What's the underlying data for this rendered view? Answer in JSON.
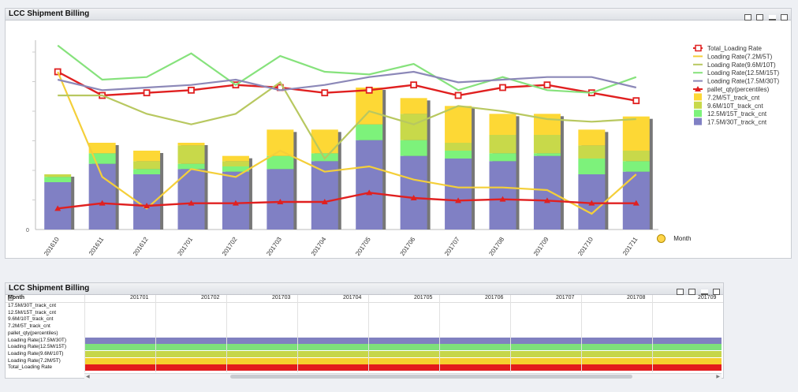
{
  "chart_panel": {
    "title": "LCC Shipment Billing",
    "month_label": "Month"
  },
  "table_panel": {
    "title": "LCC Shipment Billing",
    "corner_label": "Month",
    "columns": [
      "201701",
      "201702",
      "201703",
      "201704",
      "201705",
      "201706",
      "201707",
      "201708",
      "201709"
    ],
    "rows": [
      "17.5M/30T_track_cnt",
      "12.5M/15T_track_cnt",
      "9.6M/10T_track_cnt",
      "7.2M/5T_track_cnt",
      "pallet_qty(percentiles)",
      "Loading Rate(17.5M/30T)",
      "Loading Rate(12.5M/15T)",
      "Loading Rate(9.6M/10T)",
      "Loading Rate(7.2M/5T)",
      "Total_Loading Rate"
    ],
    "band_colors": [
      "#8080c0",
      "#7ee07a",
      "#c6d64a",
      "#f5cf2e",
      "#e31a1c"
    ]
  },
  "chart_data": {
    "type": "bar",
    "categories": [
      "201610",
      "201611",
      "201612",
      "201701",
      "201702",
      "201703",
      "201704",
      "201705",
      "201706",
      "201707",
      "201708",
      "201709",
      "201710",
      "201711"
    ],
    "y_tick_labels": [
      "0"
    ],
    "stacks": [
      {
        "name": "17.5M/30T_track_cnt",
        "color": "#8080c4",
        "values": [
          18,
          25,
          21,
          23,
          22,
          23,
          26,
          34,
          28,
          27,
          26,
          28,
          21,
          22
        ]
      },
      {
        "name": "12.5M/15T_track_cnt",
        "color": "#7df27b",
        "values": [
          2,
          4,
          2,
          2,
          2,
          5,
          3,
          6,
          6,
          3,
          3,
          1,
          6,
          4
        ]
      },
      {
        "name": "9.6M/10T_track_cnt",
        "color": "#c8d94a",
        "values": [
          1,
          0,
          3,
          7,
          2,
          0,
          0,
          0,
          10,
          3,
          7,
          7,
          5,
          4
        ]
      },
      {
        "name": "7.2M/5T_track_cnt",
        "color": "#fdd835",
        "values": [
          0,
          4,
          4,
          1,
          2,
          10,
          9,
          14,
          6,
          14,
          8,
          8,
          6,
          13
        ]
      }
    ],
    "lines": [
      {
        "name": "Total_Loading Rate",
        "color": "#e02020",
        "marker": "square",
        "values": [
          60,
          51,
          52,
          53,
          55,
          54,
          52,
          53,
          55,
          51,
          54,
          55,
          52,
          49
        ]
      },
      {
        "name": "Loading Rate(7.2M/5T)",
        "color": "#f4cf3a",
        "marker": "none",
        "values": [
          60,
          20,
          8,
          23,
          20,
          30,
          22,
          24,
          19,
          16,
          16,
          15,
          6,
          21
        ]
      },
      {
        "name": "Loading Rate(9.6M/10T)",
        "color": "#b8c860",
        "marker": "none",
        "values": [
          51,
          51,
          44,
          40,
          44,
          56,
          27,
          45,
          40,
          47,
          45,
          42,
          41,
          42
        ]
      },
      {
        "name": "Loading Rate(12.5M/15T)",
        "color": "#86e27c",
        "marker": "none",
        "values": [
          70,
          57,
          58,
          67,
          55,
          66,
          60,
          59,
          63,
          53,
          58,
          53,
          52,
          58
        ]
      },
      {
        "name": "Loading Rate(17.5M/30T)",
        "color": "#8c88b8",
        "marker": "none",
        "values": [
          57,
          53,
          54,
          55,
          57,
          53,
          55,
          58,
          60,
          56,
          57,
          58,
          58,
          54
        ]
      },
      {
        "name": "pallet_qty(percentiles)",
        "color": "#e02020",
        "marker": "triangle",
        "values": [
          8,
          10,
          9,
          10,
          10,
          10.5,
          10.5,
          14,
          12,
          11,
          11.5,
          11,
          10,
          10
        ]
      }
    ]
  }
}
